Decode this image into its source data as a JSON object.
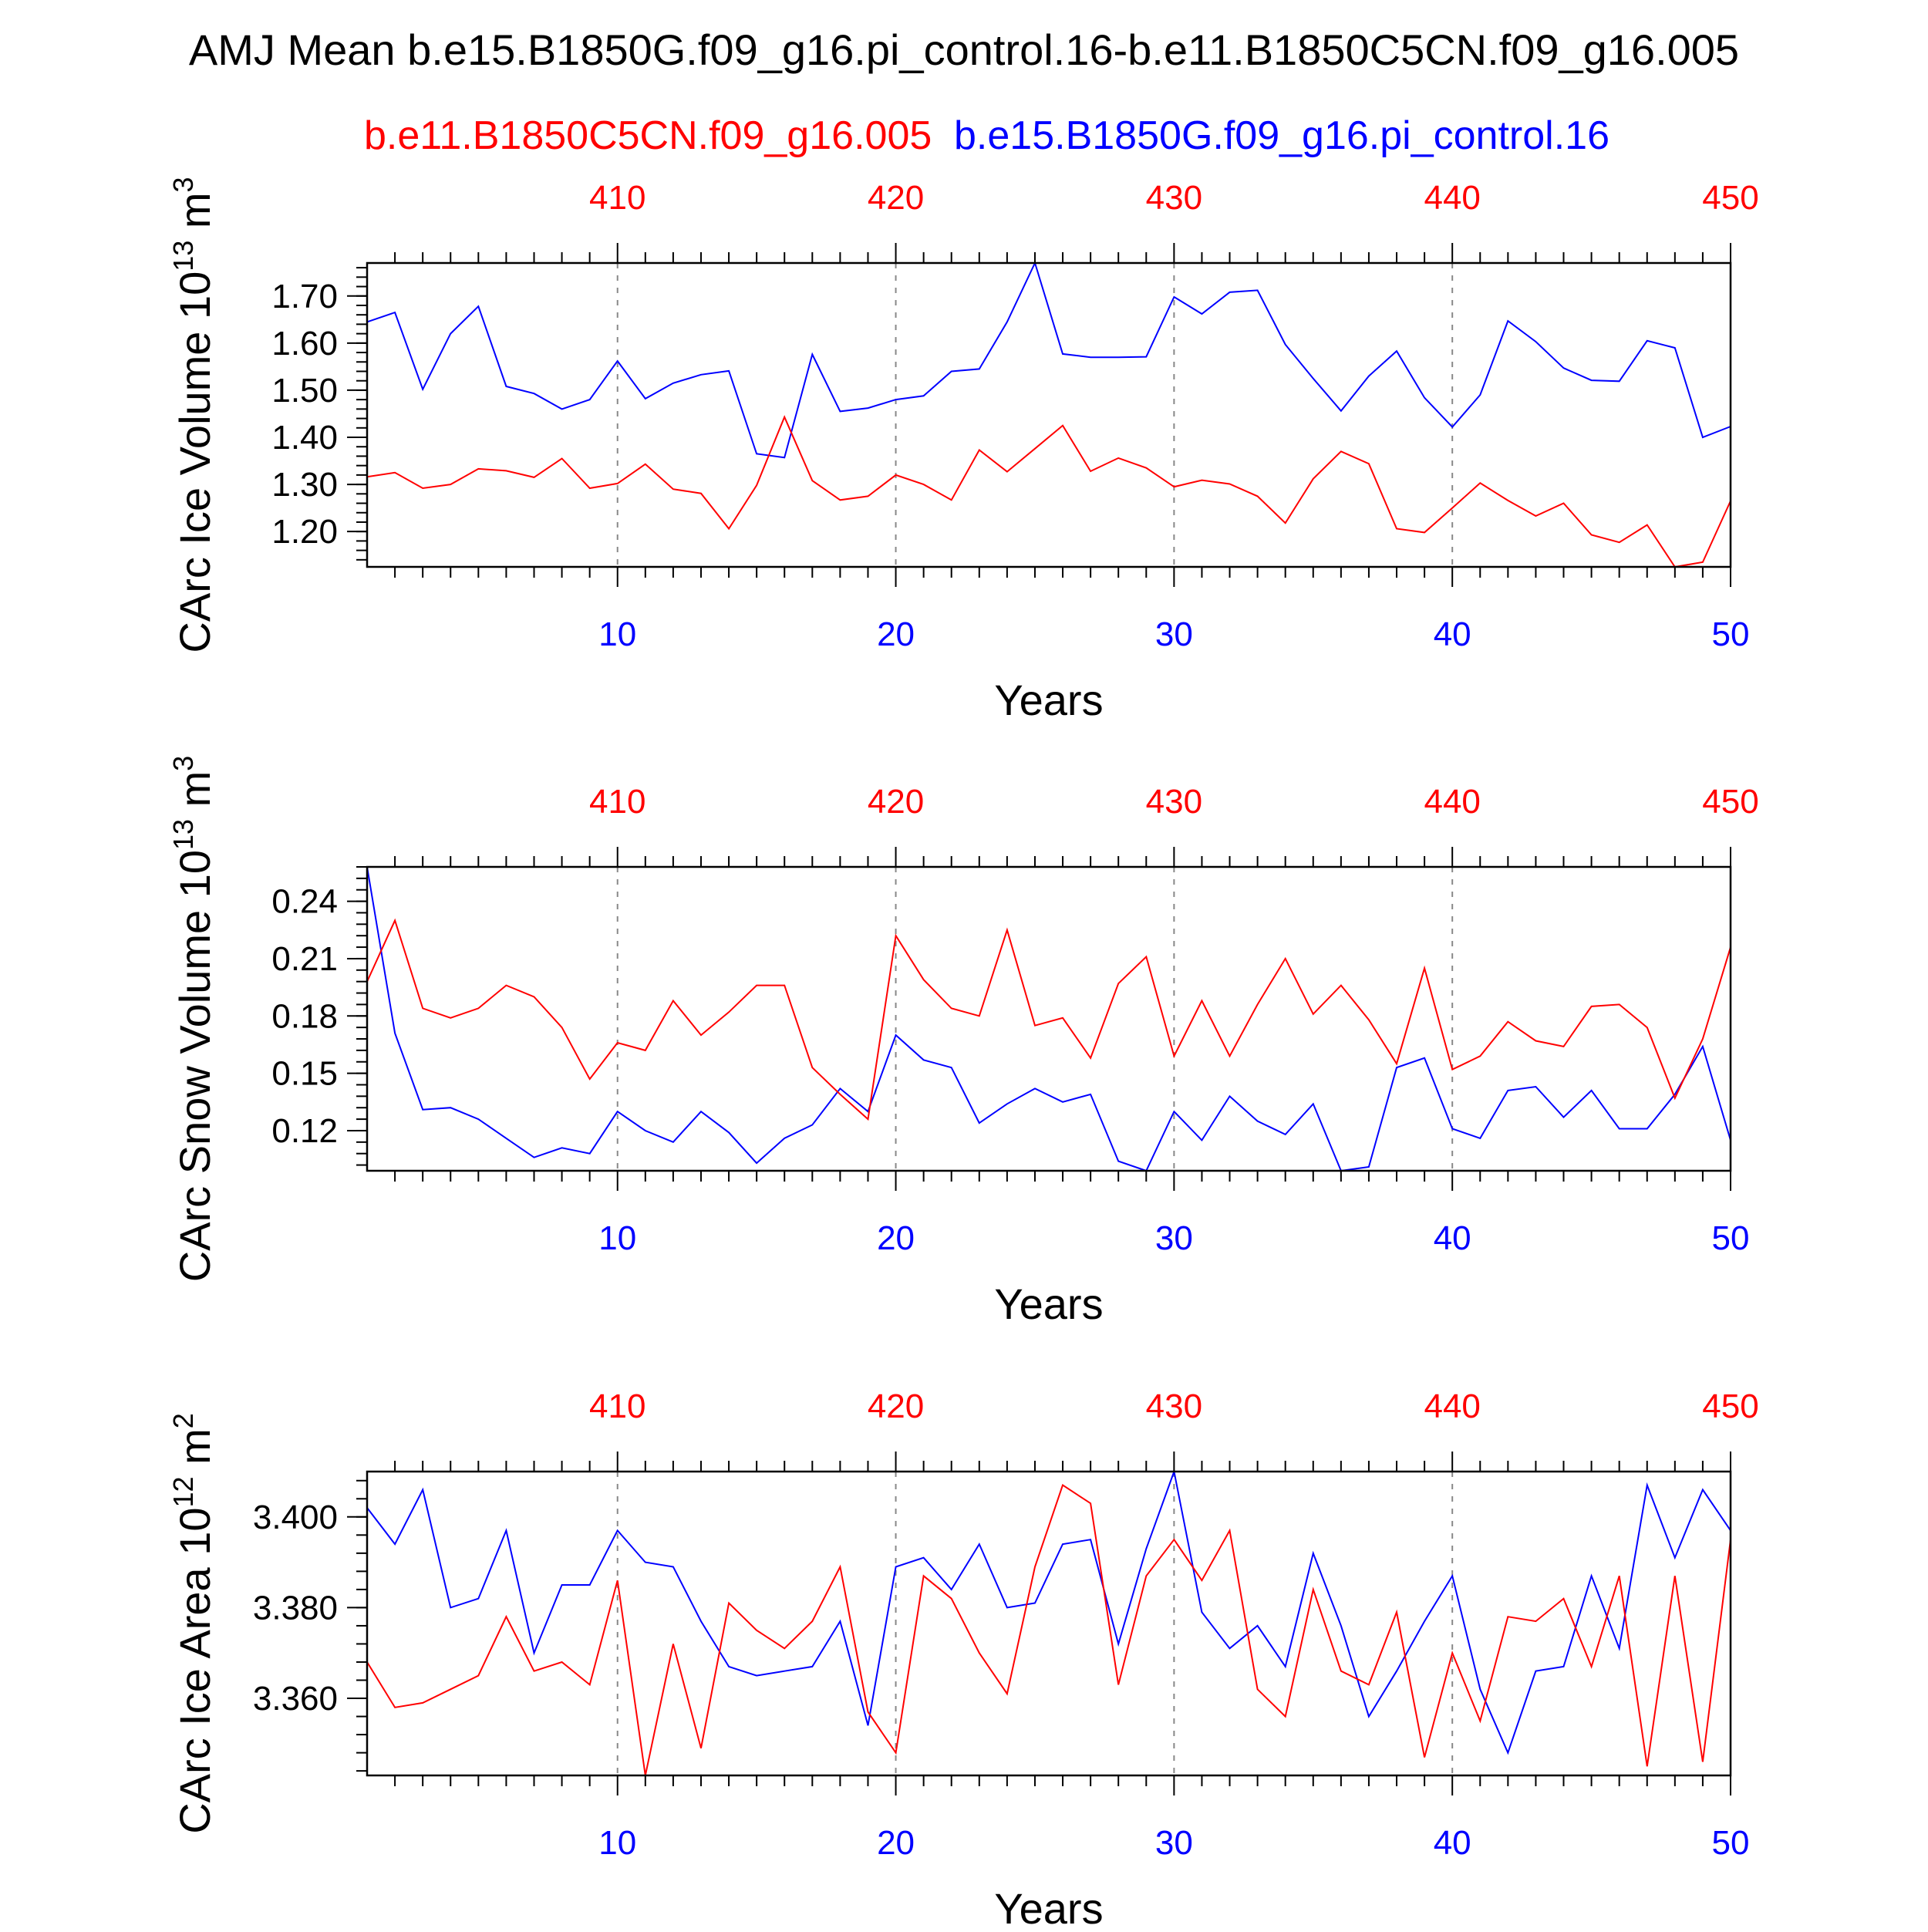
{
  "title": "AMJ Mean b.e15.B1850G.f09_g16.pi_control.16-b.e11.B1850C5CN.f09_g16.005",
  "legend": {
    "red_label": "b.e11.B1850C5CN.f09_g16.005",
    "blue_label": "b.e15.B1850G.f09_g16.pi_control.16"
  },
  "colors": {
    "red": "#ff0000",
    "blue": "#0000ff",
    "axis": "#000000",
    "grid": "#888888"
  },
  "chart_data": [
    {
      "type": "line",
      "ylabel": "CArc Ice Volume 10",
      "ylabel_exp": "13",
      "ylabel_unit": " m",
      "ylabel_unit_exp": "3",
      "xlabel": "Years",
      "xlim": [
        1,
        50
      ],
      "ylim": [
        1.125,
        1.77
      ],
      "yticks": [
        1.2,
        1.3,
        1.4,
        1.5,
        1.6,
        1.7
      ],
      "ytick_labels": [
        "1.20",
        "1.30",
        "1.40",
        "1.50",
        "1.60",
        "1.70"
      ],
      "y_minor_step": 0.02,
      "bottom_ticks": [
        "10",
        "20",
        "30",
        "40",
        "50"
      ],
      "top_ticks": [
        "410",
        "420",
        "430",
        "440",
        "450"
      ],
      "x": [
        1,
        2,
        3,
        4,
        5,
        6,
        7,
        8,
        9,
        10,
        11,
        12,
        13,
        14,
        15,
        16,
        17,
        18,
        19,
        20,
        21,
        22,
        23,
        24,
        25,
        26,
        27,
        28,
        29,
        30,
        31,
        32,
        33,
        34,
        35,
        36,
        37,
        38,
        39,
        40,
        41,
        42,
        43,
        44,
        45,
        46,
        47,
        48,
        49,
        50
      ],
      "series": [
        {
          "color": "blue",
          "values": [
            1.645,
            1.665,
            1.502,
            1.62,
            1.678,
            1.508,
            1.493,
            1.46,
            1.48,
            1.562,
            1.482,
            1.515,
            1.533,
            1.541,
            1.365,
            1.357,
            1.576,
            1.455,
            1.462,
            1.48,
            1.488,
            1.54,
            1.545,
            1.645,
            1.77,
            1.577,
            1.57,
            1.57,
            1.571,
            1.698,
            1.662,
            1.708,
            1.712,
            1.597,
            1.525,
            1.456,
            1.53,
            1.583,
            1.484,
            1.422,
            1.49,
            1.647,
            1.603,
            1.547,
            1.521,
            1.519,
            1.605,
            1.59,
            1.4,
            1.423
          ]
        },
        {
          "color": "red",
          "values": [
            1.316,
            1.325,
            1.292,
            1.3,
            1.333,
            1.329,
            1.315,
            1.355,
            1.292,
            1.302,
            1.343,
            1.29,
            1.281,
            1.206,
            1.298,
            1.443,
            1.308,
            1.267,
            1.275,
            1.32,
            1.3,
            1.267,
            1.373,
            1.327,
            1.376,
            1.425,
            1.328,
            1.356,
            1.335,
            1.295,
            1.309,
            1.301,
            1.275,
            1.218,
            1.312,
            1.37,
            1.344,
            1.206,
            1.198,
            1.25,
            1.303,
            1.266,
            1.233,
            1.26,
            1.193,
            1.177,
            1.214,
            1.125,
            1.135,
            1.265
          ]
        }
      ]
    },
    {
      "type": "line",
      "ylabel": "CArc Snow Volume 10",
      "ylabel_exp": "13",
      "ylabel_unit": " m",
      "ylabel_unit_exp": "3",
      "xlabel": "Years",
      "xlim": [
        1,
        50
      ],
      "ylim": [
        0.099,
        0.258
      ],
      "yticks": [
        0.12,
        0.15,
        0.18,
        0.21,
        0.24
      ],
      "ytick_labels": [
        "0.12",
        "0.15",
        "0.18",
        "0.21",
        "0.24"
      ],
      "y_minor_step": 0.006,
      "bottom_ticks": [
        "10",
        "20",
        "30",
        "40",
        "50"
      ],
      "top_ticks": [
        "410",
        "420",
        "430",
        "440",
        "450"
      ],
      "x": [
        1,
        2,
        3,
        4,
        5,
        6,
        7,
        8,
        9,
        10,
        11,
        12,
        13,
        14,
        15,
        16,
        17,
        18,
        19,
        20,
        21,
        22,
        23,
        24,
        25,
        26,
        27,
        28,
        29,
        30,
        31,
        32,
        33,
        34,
        35,
        36,
        37,
        38,
        39,
        40,
        41,
        42,
        43,
        44,
        45,
        46,
        47,
        48,
        49,
        50
      ],
      "series": [
        {
          "color": "blue",
          "values": [
            0.258,
            0.171,
            0.131,
            0.132,
            0.126,
            0.116,
            0.106,
            0.111,
            0.108,
            0.13,
            0.12,
            0.114,
            0.13,
            0.119,
            0.103,
            0.116,
            0.123,
            0.142,
            0.13,
            0.17,
            0.157,
            0.153,
            0.124,
            0.134,
            0.142,
            0.135,
            0.139,
            0.104,
            0.099,
            0.13,
            0.115,
            0.138,
            0.125,
            0.118,
            0.134,
            0.099,
            0.101,
            0.153,
            0.158,
            0.121,
            0.116,
            0.141,
            0.143,
            0.127,
            0.141,
            0.121,
            0.121,
            0.139,
            0.164,
            0.115
          ]
        },
        {
          "color": "red",
          "values": [
            0.198,
            0.23,
            0.184,
            0.179,
            0.184,
            0.196,
            0.19,
            0.174,
            0.147,
            0.166,
            0.162,
            0.188,
            0.17,
            0.182,
            0.196,
            0.196,
            0.153,
            0.139,
            0.126,
            0.222,
            0.199,
            0.184,
            0.18,
            0.225,
            0.175,
            0.179,
            0.158,
            0.197,
            0.211,
            0.159,
            0.188,
            0.159,
            0.186,
            0.21,
            0.181,
            0.196,
            0.178,
            0.155,
            0.205,
            0.152,
            0.159,
            0.177,
            0.167,
            0.164,
            0.185,
            0.186,
            0.174,
            0.137,
            0.168,
            0.216
          ]
        }
      ]
    },
    {
      "type": "line",
      "ylabel": "CArc Ice Area 10",
      "ylabel_exp": "12",
      "ylabel_unit": " m",
      "ylabel_unit_exp": "2",
      "xlabel": "Years",
      "xlim": [
        1,
        50
      ],
      "ylim": [
        3.343,
        3.41
      ],
      "yticks": [
        3.36,
        3.38,
        3.4
      ],
      "ytick_labels": [
        "3.360",
        "3.380",
        "3.400"
      ],
      "y_minor_step": 0.004,
      "bottom_ticks": [
        "10",
        "20",
        "30",
        "40",
        "50"
      ],
      "top_ticks": [
        "410",
        "420",
        "430",
        "440",
        "450"
      ],
      "x": [
        1,
        2,
        3,
        4,
        5,
        6,
        7,
        8,
        9,
        10,
        11,
        12,
        13,
        14,
        15,
        16,
        17,
        18,
        19,
        20,
        21,
        22,
        23,
        24,
        25,
        26,
        27,
        28,
        29,
        30,
        31,
        32,
        33,
        34,
        35,
        36,
        37,
        38,
        39,
        40,
        41,
        42,
        43,
        44,
        45,
        46,
        47,
        48,
        49,
        50
      ],
      "series": [
        {
          "color": "blue",
          "values": [
            3.402,
            3.394,
            3.406,
            3.38,
            3.382,
            3.397,
            3.37,
            3.385,
            3.385,
            3.397,
            3.39,
            3.389,
            3.377,
            3.367,
            3.365,
            3.366,
            3.367,
            3.377,
            3.354,
            3.389,
            3.391,
            3.384,
            3.394,
            3.38,
            3.381,
            3.394,
            3.395,
            3.372,
            3.393,
            3.41,
            3.379,
            3.371,
            3.376,
            3.367,
            3.392,
            3.376,
            3.356,
            3.366,
            3.377,
            3.387,
            3.362,
            3.348,
            3.366,
            3.367,
            3.387,
            3.371,
            3.407,
            3.391,
            3.406,
            3.397
          ]
        },
        {
          "color": "red",
          "values": [
            3.368,
            3.358,
            3.359,
            3.362,
            3.365,
            3.378,
            3.366,
            3.368,
            3.363,
            3.386,
            3.343,
            3.372,
            3.349,
            3.381,
            3.375,
            3.371,
            3.377,
            3.389,
            3.357,
            3.348,
            3.387,
            3.382,
            3.37,
            3.361,
            3.389,
            3.407,
            3.403,
            3.363,
            3.387,
            3.395,
            3.386,
            3.397,
            3.362,
            3.356,
            3.384,
            3.366,
            3.363,
            3.379,
            3.347,
            3.37,
            3.355,
            3.378,
            3.377,
            3.382,
            3.367,
            3.387,
            3.345,
            3.387,
            3.346,
            3.395
          ]
        }
      ]
    }
  ]
}
